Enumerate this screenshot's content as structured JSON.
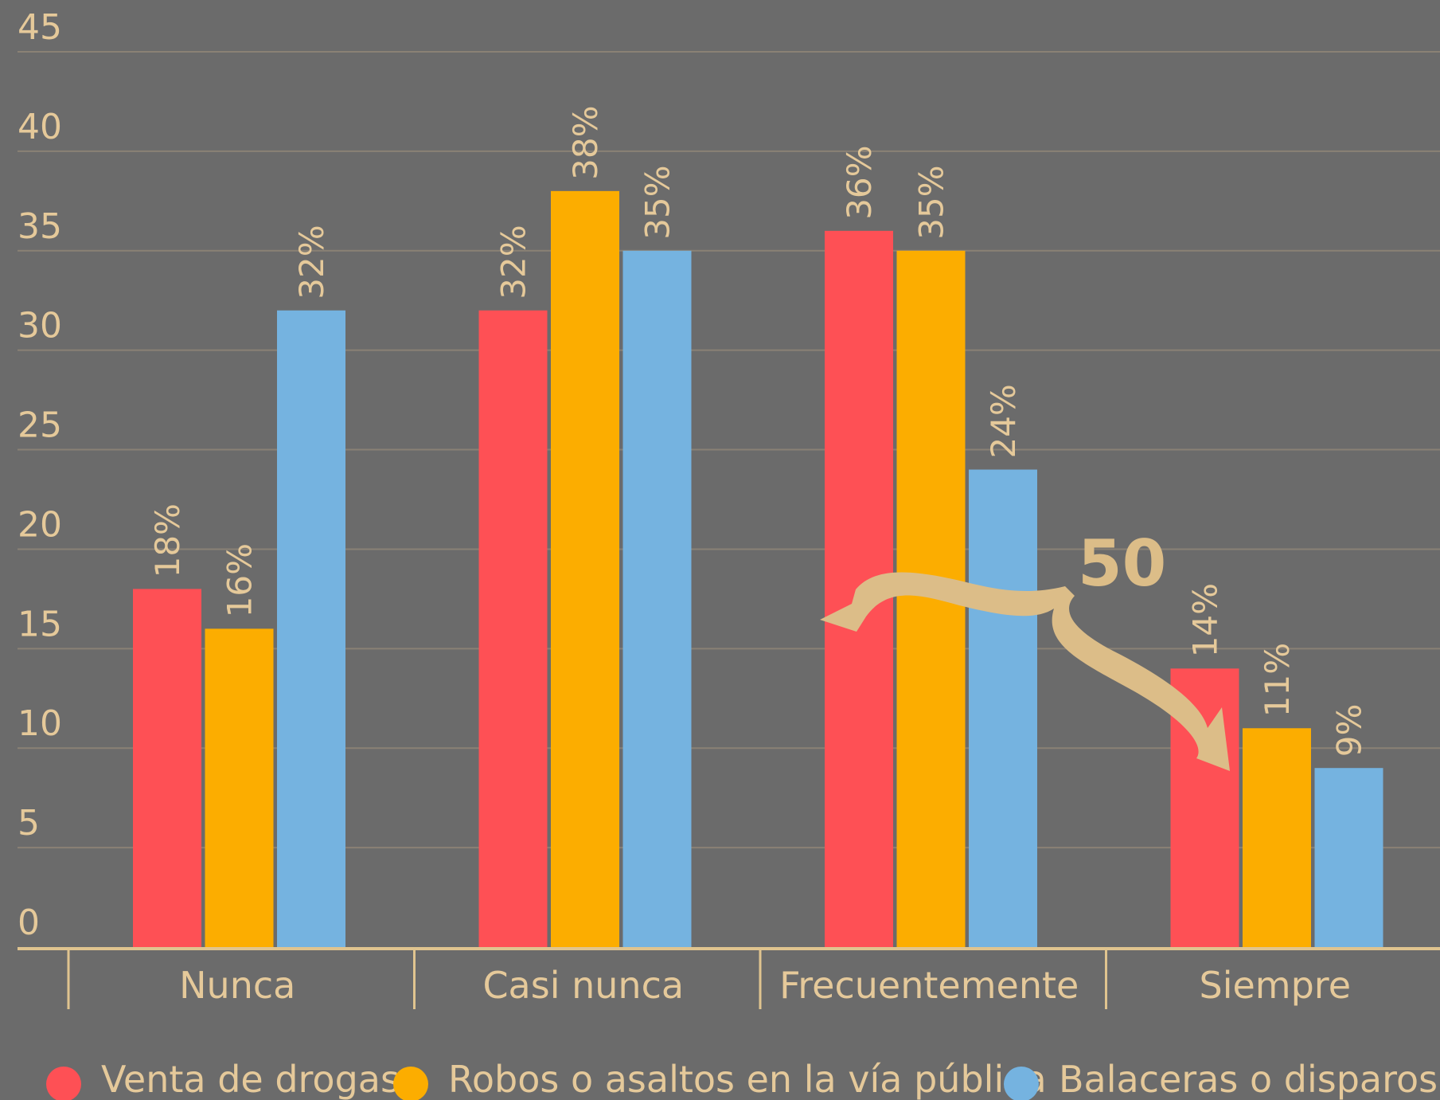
{
  "colors": {
    "background": "#6b6b6b",
    "text": "#e5c99a",
    "gridline": "#8a8175",
    "axis": "#e0c48f"
  },
  "chart_data": {
    "type": "bar",
    "title": "",
    "xlabel": "",
    "ylabel": "",
    "categories": [
      "Nunca",
      "Casi nunca",
      "Frecuentemente",
      "Siempre"
    ],
    "ylim": [
      0,
      45
    ],
    "yticks": [
      "0",
      "5",
      "10",
      "15",
      "20",
      "25",
      "30",
      "35",
      "40",
      "45"
    ],
    "grid": true,
    "legend_position": "bottom",
    "series": [
      {
        "name": "Venta de drogas",
        "color": "#fe5055",
        "values": [
          18,
          32,
          36,
          14
        ],
        "labels": [
          "18%",
          "32%",
          "36%",
          "14%"
        ]
      },
      {
        "name": "Robos o asaltos en la vía pública",
        "color": "#fcad00",
        "values": [
          16,
          38,
          35,
          11
        ],
        "labels": [
          "16%",
          "38%",
          "35%",
          "11%"
        ]
      },
      {
        "name": "Balaceras o disparos",
        "color": "#75b3e0",
        "values": [
          32,
          35,
          24,
          9
        ],
        "labels": [
          "32%",
          "35%",
          "24%",
          "9%"
        ]
      }
    ],
    "annotation": {
      "text": "50",
      "arrow_color": "#dcbd88",
      "from_category": "Frecuentemente",
      "to_category": "Siempre"
    }
  }
}
